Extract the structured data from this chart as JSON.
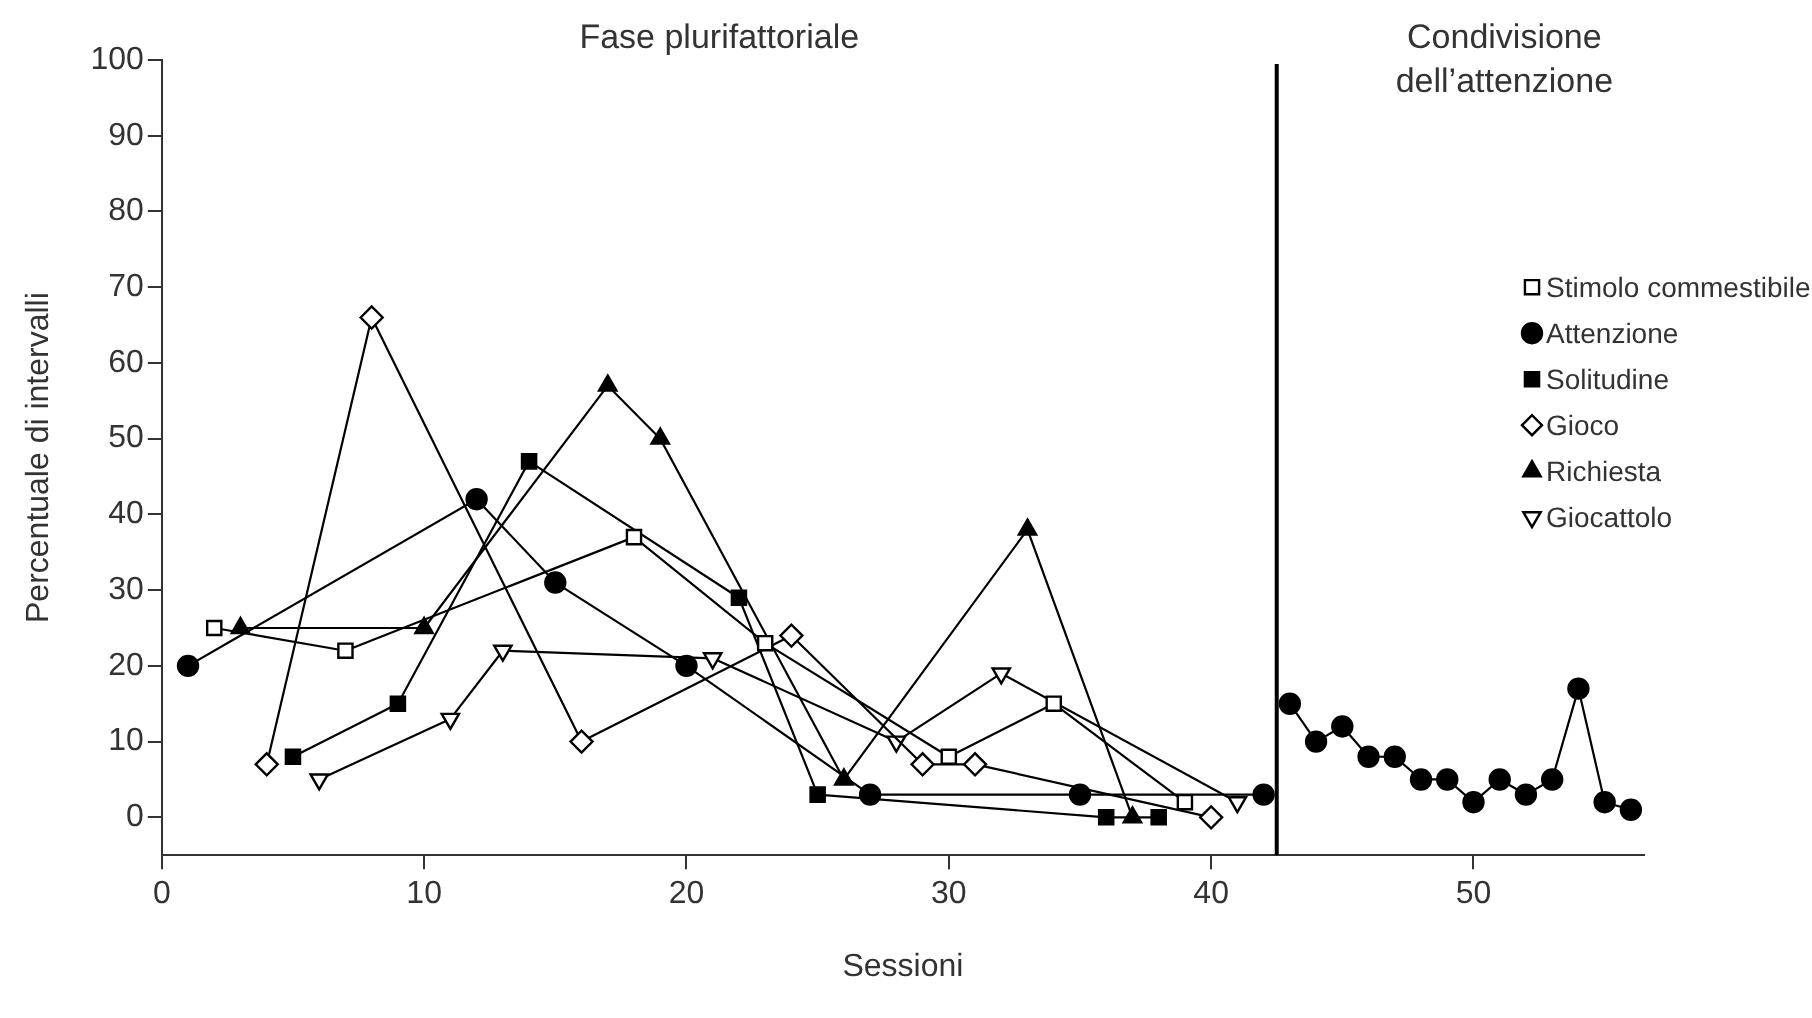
{
  "chart_data": {
    "type": "line",
    "xlabel": "Sessioni",
    "ylabel": "Percentuale di intervalli",
    "annotations": [
      "Fase plurifattoriale",
      "Condivisione dell’attenzione"
    ],
    "xlim": [
      0,
      56.5
    ],
    "xticks": [
      0,
      10,
      20,
      30,
      40,
      50
    ],
    "ylim": [
      -5,
      100
    ],
    "yticks": [
      0,
      10,
      20,
      30,
      40,
      50,
      60,
      70,
      80,
      90,
      100
    ],
    "grid": false,
    "legend": "right",
    "line_style": "solid",
    "ref_lines": [
      {
        "axis": "x",
        "value": 42.5,
        "color": "#000000"
      }
    ],
    "series": [
      {
        "name": "Stimolo commestibile",
        "color": "#000000",
        "marker": "square-open",
        "x": [
          2,
          7,
          18,
          23,
          30,
          34,
          39
        ],
        "values": [
          25,
          22,
          37,
          23,
          8,
          15,
          2
        ]
      },
      {
        "name": "Attenzione",
        "color": "#000000",
        "marker": "circle",
        "x": [
          1,
          12,
          15,
          20,
          27,
          35,
          42
        ],
        "values": [
          20,
          42,
          31,
          20,
          3,
          3,
          3
        ]
      },
      {
        "name": "Solitudine",
        "color": "#000000",
        "marker": "square",
        "x": [
          5,
          9,
          14,
          22,
          25,
          36,
          38
        ],
        "values": [
          8,
          15,
          47,
          29,
          3,
          0,
          0
        ]
      },
      {
        "name": "Gioco",
        "color": "#000000",
        "marker": "diamond-open",
        "x": [
          4,
          8,
          16,
          24,
          29,
          31,
          40
        ],
        "values": [
          7,
          66,
          10,
          24,
          7,
          7,
          0
        ]
      },
      {
        "name": "Richiesta",
        "color": "#000000",
        "marker": "triangle",
        "x": [
          3,
          10,
          17,
          19,
          26,
          33,
          37
        ],
        "values": [
          25,
          25,
          57,
          50,
          5,
          38,
          0
        ]
      },
      {
        "name": "Giocattolo",
        "color": "#000000",
        "marker": "triangle-down-open",
        "x": [
          6,
          11,
          13,
          21,
          28,
          32,
          41
        ],
        "values": [
          5,
          13,
          22,
          21,
          10,
          19,
          2
        ]
      },
      {
        "color": "#000000",
        "marker": "circle",
        "x": [
          43,
          44,
          45,
          46,
          47,
          48,
          49,
          50,
          51,
          52,
          53,
          54,
          55,
          56
        ],
        "values": [
          15,
          10,
          12,
          8,
          8,
          5,
          5,
          2,
          5,
          3,
          5,
          17,
          2,
          1
        ]
      }
    ]
  }
}
